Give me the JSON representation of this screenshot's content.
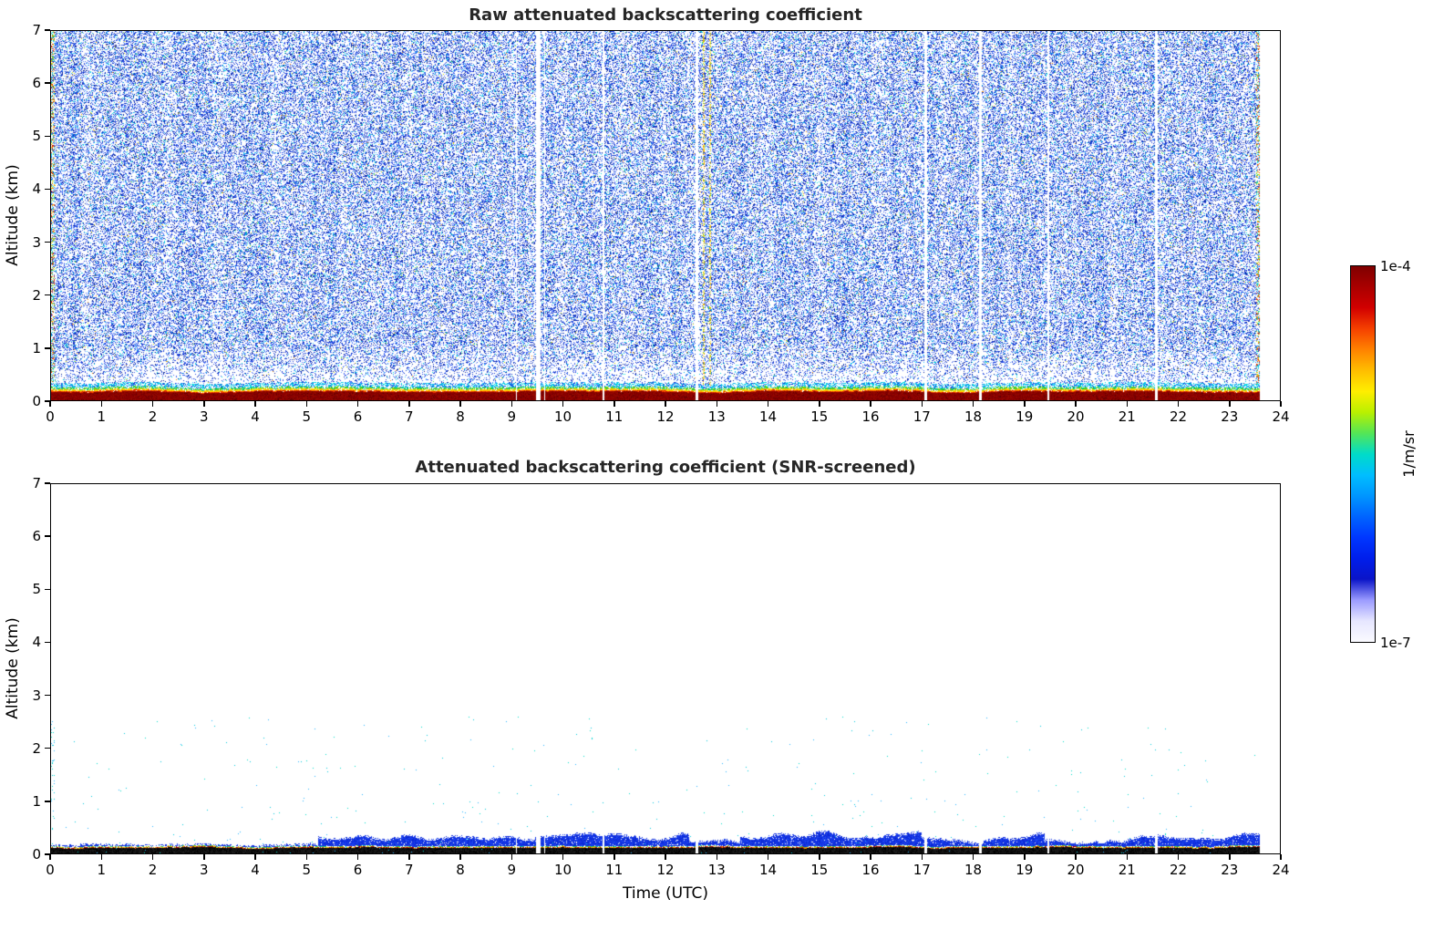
{
  "figure": {
    "background_color": "#ffffff"
  },
  "chart_data": [
    {
      "type": "heatmap",
      "id": "raw",
      "title": "Raw attenuated backscattering coefficient",
      "xlabel": "",
      "ylabel": "Altitude (km)",
      "xlim": [
        0,
        24
      ],
      "ylim": [
        0,
        7
      ],
      "x_ticks": [
        0,
        1,
        2,
        3,
        4,
        5,
        6,
        7,
        8,
        9,
        10,
        11,
        12,
        13,
        14,
        15,
        16,
        17,
        18,
        19,
        20,
        21,
        22,
        23,
        24
      ],
      "y_ticks": [
        0,
        1,
        2,
        3,
        4,
        5,
        6,
        7
      ],
      "grid": false,
      "data_end_time": 23.6,
      "seed": 1337,
      "description": "Lidar time-height curtain: dense blue speckle noise through the free troposphere, strong dark-red surface return below ~0.2 km topped by a red-yellow-green-cyan fringe, several narrow white missing-data columns, and a warm-colored noisy profile streak near 12.8 UTC.",
      "noise": {
        "density": 0.46,
        "low_altitude_clearing_below_km": 1.1
      },
      "surface_layer": {
        "top_km": 0.16,
        "variation_km": 0.035
      },
      "gaps": [
        {
          "time": 9.08,
          "width": 0.03
        },
        {
          "time": 9.5,
          "width": 0.09
        },
        {
          "time": 9.63,
          "width": 0.03
        },
        {
          "time": 10.78,
          "width": 0.04
        },
        {
          "time": 12.6,
          "width": 0.05
        },
        {
          "time": 17.08,
          "width": 0.05
        },
        {
          "time": 18.14,
          "width": 0.06
        },
        {
          "time": 19.47,
          "width": 0.03
        },
        {
          "time": 21.58,
          "width": 0.04
        }
      ],
      "streaks": [
        {
          "time": 12.74,
          "width": 0.05
        },
        {
          "time": 12.86,
          "width": 0.04
        }
      ],
      "edge_columns": [
        {
          "time": 0.03,
          "width": 0.07
        },
        {
          "time": 23.56,
          "width": 0.08
        }
      ],
      "palette": {
        "core_red": [
          "#7a0000",
          "#8c0000",
          "#960a00"
        ],
        "deep_red": [
          "#5a0000"
        ],
        "fringe_red": [
          "#c81400",
          "#e63200",
          "#ff5000"
        ],
        "fringe_yellow": [
          "#ffd200",
          "#ffb400",
          "#ffe600"
        ],
        "fringe_green": [
          "#50c832",
          "#82dc00",
          "#00c850"
        ],
        "cyan": [
          "#00b4e6",
          "#32c8ff",
          "#00dcdc"
        ],
        "blue": [
          "#1e3cdc",
          "#2850e6",
          "#0a32c8",
          "#3c64f0"
        ],
        "dark_blue": [
          "#001e96",
          "#142da0"
        ],
        "light_blue": [
          "#5078ff",
          "#6496ff"
        ],
        "pale_blue": [
          "#96b4ff"
        ],
        "rare": [
          "#50dc46",
          "#d2dc00",
          "#ff9600"
        ],
        "streak_warm": [
          "#ffd200",
          "#c8c800",
          "#ff9600",
          "#96c800",
          "#e6e650"
        ]
      }
    },
    {
      "type": "heatmap",
      "id": "screened",
      "title": "Attenuated backscattering coefficient (SNR-screened)",
      "xlabel": "Time (UTC)",
      "ylabel": "Altitude (km)",
      "xlim": [
        0,
        24
      ],
      "ylim": [
        0,
        7
      ],
      "x_ticks": [
        0,
        1,
        2,
        3,
        4,
        5,
        6,
        7,
        8,
        9,
        10,
        11,
        12,
        13,
        14,
        15,
        16,
        17,
        18,
        19,
        20,
        21,
        22,
        23,
        24
      ],
      "y_ticks": [
        0,
        1,
        2,
        3,
        4,
        5,
        6,
        7
      ],
      "grid": false,
      "data_end_time": 23.6,
      "seed": 4242,
      "description": "Same curtain after SNR screening: only the shallow surface layer survives - a black band below ~0.12 km with a thin warm fringe, an intermittent dark-blue boundary layer reaching ~0.45 km, and sparse cyan specks below ~2.5 km.",
      "surface_layer": {
        "top_km": 0.105,
        "variation_km": 0.02
      },
      "boundary_layer": {
        "segments": [
          {
            "start": 0.0,
            "end": 5.2,
            "max_top_km": 0.06
          },
          {
            "start": 5.2,
            "end": 9.45,
            "max_top_km": 0.28
          },
          {
            "start": 9.45,
            "end": 12.45,
            "max_top_km": 0.34
          },
          {
            "start": 12.45,
            "end": 13.45,
            "max_top_km": 0.14
          },
          {
            "start": 13.45,
            "end": 17.0,
            "max_top_km": 0.36
          },
          {
            "start": 17.0,
            "end": 18.2,
            "max_top_km": 0.2
          },
          {
            "start": 18.2,
            "end": 19.4,
            "max_top_km": 0.3
          },
          {
            "start": 19.4,
            "end": 20.6,
            "max_top_km": 0.14
          },
          {
            "start": 20.6,
            "end": 21.6,
            "max_top_km": 0.24
          },
          {
            "start": 21.6,
            "end": 23.6,
            "max_top_km": 0.3
          }
        ]
      },
      "specks": {
        "count": 260,
        "max_altitude_km": 2.6
      },
      "gaps": [
        {
          "time": 9.08,
          "width": 0.03
        },
        {
          "time": 9.5,
          "width": 0.09
        },
        {
          "time": 9.63,
          "width": 0.03
        },
        {
          "time": 10.78,
          "width": 0.04
        },
        {
          "time": 12.6,
          "width": 0.05
        },
        {
          "time": 17.08,
          "width": 0.05
        },
        {
          "time": 18.14,
          "width": 0.06
        },
        {
          "time": 19.47,
          "width": 0.03
        },
        {
          "time": 21.58,
          "width": 0.04
        }
      ],
      "palette": {
        "core_dark": [
          "#000000",
          "#0f0f0f",
          "#1b1b1b"
        ],
        "fringe_warm": [
          "#c81e00",
          "#ff8c00",
          "#ffd200",
          "#a00000"
        ],
        "fringe_green": [
          "#96c800",
          "#32c864",
          "#00c8a0"
        ],
        "blue": [
          "#1432e6",
          "#1e46f0",
          "#0a28d2"
        ],
        "speck": [
          "#00c8dc",
          "#28b4ff",
          "#00dcc8"
        ]
      }
    }
  ],
  "colorbar": {
    "max_label": "1e-4",
    "min_label": "1e-7",
    "unit_label": "1/m/sr",
    "scale": "log",
    "colors_top_to_bottom": [
      "#7f0000",
      "#aa0000",
      "#d20000",
      "#f54100",
      "#ff8200",
      "#ffbe00",
      "#ffee00",
      "#b9f000",
      "#55e655",
      "#00dcc8",
      "#00beff",
      "#0096ff",
      "#0064ff",
      "#0037ff",
      "#001eeb",
      "#0a14c8",
      "#9b9bff",
      "#e6e6ff",
      "#fafaff"
    ]
  }
}
